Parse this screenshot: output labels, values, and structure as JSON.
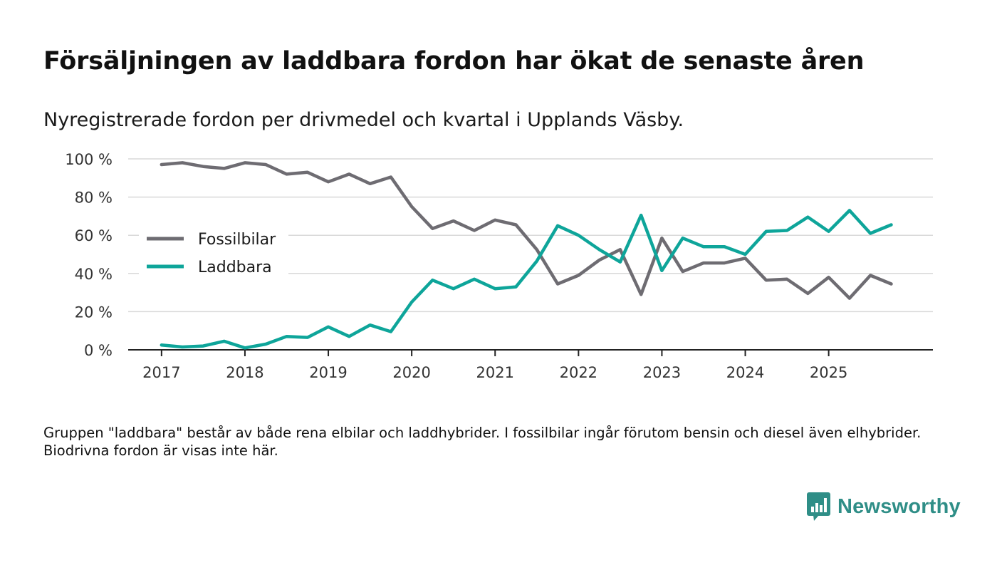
{
  "title": "Försäljningen av laddbara fordon har ökat de senaste åren",
  "subtitle": "Nyregistrerade fordon per drivmedel och kvartal i Upplands Väsby.",
  "footnote": "Gruppen \"laddbara\" består av både rena elbilar och laddhybrider. I fossilbilar ingår förutom bensin och diesel även elhybrider. Biodrivna fordon är visas inte här.",
  "brand": {
    "name": "Newsworthy"
  },
  "colors": {
    "fossil": "#6e6c72",
    "laddbara": "#0ea59a",
    "grid": "#d9d9d9",
    "axis": "#222222",
    "brand": "#2f8e87"
  },
  "chart_data": {
    "type": "line",
    "title": "Försäljningen av laddbara fordon har ökat de senaste åren",
    "xlabel": "",
    "ylabel": "",
    "x_start": 2017.0,
    "x_step": 0.25,
    "xlim": [
      2016.6,
      2026.25
    ],
    "ylim": [
      0,
      100
    ],
    "x_ticks": [
      2017,
      2018,
      2019,
      2020,
      2021,
      2022,
      2023,
      2024,
      2025
    ],
    "x_tick_labels": [
      "2017",
      "2018",
      "2019",
      "2020",
      "2021",
      "2022",
      "2023",
      "2024",
      "2025"
    ],
    "y_ticks": [
      0,
      20,
      40,
      60,
      80,
      100
    ],
    "y_tick_labels": [
      "0 %",
      "20 %",
      "40 %",
      "60 %",
      "80 %",
      "100 %"
    ],
    "legend_position": "middle-left",
    "series": [
      {
        "name": "Fossilbilar",
        "color": "#6e6c72",
        "values": [
          97,
          98,
          96,
          95,
          98,
          97,
          92,
          93,
          88,
          92,
          87,
          90.5,
          75,
          63.5,
          67.5,
          62.5,
          68,
          65.5,
          52.5,
          34.5,
          39,
          47,
          52.5,
          29,
          58.5,
          41,
          45.5,
          45.5,
          48,
          36.5,
          37,
          29.5,
          38,
          27,
          39,
          34.5
        ]
      },
      {
        "name": "Laddbara",
        "color": "#0ea59a",
        "values": [
          2.5,
          1.5,
          2,
          4.5,
          1,
          3,
          7,
          6.5,
          12,
          7,
          13,
          9.5,
          25,
          36.5,
          32,
          37,
          32,
          33,
          46.5,
          65,
          60,
          52.5,
          46,
          70.5,
          41.5,
          58.5,
          54,
          54,
          50,
          62,
          62.5,
          69.5,
          62,
          73,
          61,
          65.5
        ]
      }
    ]
  }
}
